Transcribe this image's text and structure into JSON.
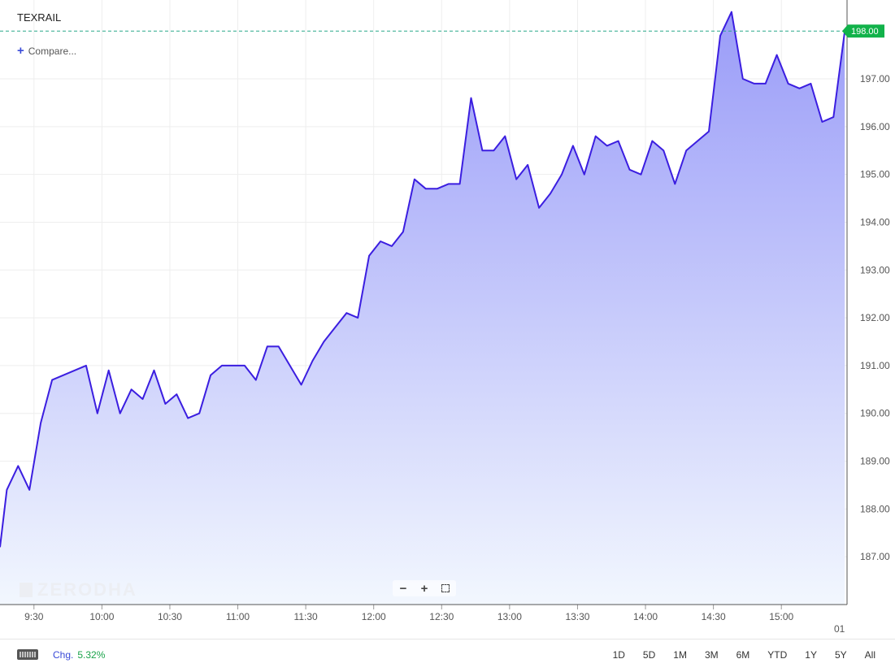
{
  "header": {
    "symbol": "TEXRAIL",
    "compare_label": "Compare..."
  },
  "watermark": "ZERODHA",
  "footer": {
    "change_label": "Chg.",
    "change_value": "5.32%",
    "ranges": [
      "1D",
      "5D",
      "1M",
      "3M",
      "6M",
      "YTD",
      "1Y",
      "5Y",
      "All"
    ]
  },
  "colors": {
    "line": "#3b1ee0",
    "area_top": "#9a9cf8",
    "area_bottom": "#f2f7fe",
    "current_price_badge": "#11b24a",
    "current_price_line": "#2aa88a",
    "change_positive": "#1aa34a",
    "accent": "#3a4bd8"
  },
  "chart_data": {
    "type": "area",
    "title": "TEXRAIL",
    "xlabel": "",
    "ylabel": "",
    "x_tick_labels": [
      "9:30",
      "10:00",
      "10:30",
      "11:00",
      "11:30",
      "12:00",
      "12:30",
      "13:00",
      "13:30",
      "14:00",
      "14:30",
      "15:00"
    ],
    "x_tick_minutes": [
      570,
      600,
      630,
      660,
      690,
      720,
      750,
      780,
      810,
      840,
      870,
      900
    ],
    "x_edge_label": "01",
    "y_tick_labels": [
      "187.00",
      "188.00",
      "189.00",
      "190.00",
      "191.00",
      "192.00",
      "193.00",
      "194.00",
      "195.00",
      "196.00",
      "197.00"
    ],
    "ylim": [
      186.0,
      198.65
    ],
    "xlim_minutes": [
      555,
      929
    ],
    "current_price": 198.0,
    "current_price_label": "198.00",
    "grid": true,
    "series": [
      {
        "x_minutes": [
          555,
          558,
          563,
          568,
          573,
          578,
          583,
          588,
          593,
          598,
          603,
          608,
          613,
          618,
          623,
          628,
          633,
          638,
          643,
          648,
          653,
          658,
          663,
          668,
          673,
          678,
          683,
          688,
          693,
          698,
          703,
          708,
          713,
          718,
          723,
          728,
          733,
          738,
          743,
          748,
          753,
          758,
          763,
          768,
          773,
          778,
          783,
          788,
          793,
          798,
          803,
          808,
          813,
          818,
          823,
          828,
          833,
          838,
          843,
          848,
          853,
          858,
          863,
          868,
          873,
          878,
          883,
          888,
          893,
          898,
          903,
          908,
          913,
          918,
          923
        ],
        "values": [
          187.2,
          188.4,
          188.9,
          188.4,
          189.8,
          190.7,
          190.8,
          190.9,
          191.0,
          190.0,
          190.9,
          190.0,
          190.5,
          190.3,
          190.9,
          190.2,
          190.4,
          189.9,
          190.0,
          190.8,
          191.0,
          191.0,
          191.0,
          190.7,
          191.4,
          191.4,
          191.0,
          190.6,
          191.1,
          191.5,
          191.8,
          192.1,
          192.0,
          193.3,
          193.6,
          193.5,
          193.8,
          194.9,
          194.7,
          194.7,
          194.8,
          194.8,
          196.6,
          195.5,
          195.5,
          195.8,
          194.9,
          195.2,
          194.3,
          194.6,
          195.0,
          195.6,
          195.0,
          195.8,
          195.6,
          195.7,
          195.1,
          195.0,
          195.7,
          195.5,
          194.8,
          195.5,
          195.7,
          195.9,
          197.9,
          198.4,
          197.0,
          196.9,
          196.9,
          197.5,
          196.9,
          196.8,
          196.9,
          196.1,
          196.2
        ]
      }
    ],
    "last_point": {
      "x_minutes": 928,
      "value": 198.0
    }
  }
}
